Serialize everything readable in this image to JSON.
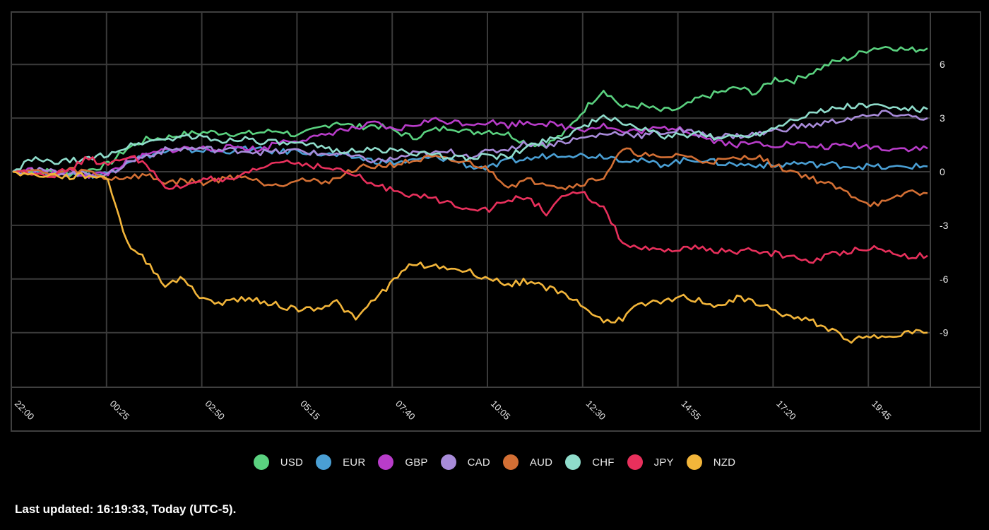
{
  "chart_data": {
    "type": "line",
    "title": "",
    "xlabel": "",
    "ylabel": "",
    "ylim": [
      -12,
      8
    ],
    "grid": true,
    "legend_position": "bottom",
    "x_tick_labels": [
      "22:00",
      "00:25",
      "02:50",
      "05:15",
      "07:40",
      "10:05",
      "12:30",
      "14:55",
      "17:20",
      "19:45"
    ],
    "y_tick_labels": [
      "6",
      "3",
      "0",
      "-3",
      "-6",
      "-9"
    ],
    "y_tick_values": [
      6,
      3,
      0,
      -3,
      -6,
      -9
    ],
    "x_minutes_from_start_step": 35,
    "series": [
      {
        "name": "USD",
        "color": "#5ad17f",
        "values": [
          0,
          0.1,
          0.0,
          -0.1,
          0.1,
          0.4,
          1.3,
          1.8,
          1.9,
          2.1,
          2.2,
          2.2,
          2.1,
          2.2,
          2.3,
          2.0,
          2.4,
          2.8,
          2.5,
          2.6,
          2.3,
          1.9,
          2.3,
          2.5,
          2.2,
          2.3,
          2.1,
          1.6,
          1.5,
          2.2,
          3.5,
          4.6,
          3.6,
          3.7,
          3.4,
          3.5,
          4.1,
          4.4,
          4.7,
          4.4,
          5.2,
          5.1,
          5.6,
          6.1,
          6.4,
          6.9,
          7.0,
          6.8,
          6.9
        ]
      },
      {
        "name": "EUR",
        "color": "#4a9fd4",
        "values": [
          0,
          0.0,
          -0.1,
          -0.1,
          -0.2,
          -0.1,
          0.6,
          0.9,
          1.1,
          1.2,
          1.2,
          1.1,
          1.3,
          1.2,
          1.1,
          1.2,
          1.0,
          0.9,
          0.8,
          0.6,
          0.5,
          0.6,
          0.8,
          0.7,
          0.3,
          0.2,
          0.6,
          0.7,
          0.9,
          1.0,
          0.9,
          0.9,
          0.7,
          0.6,
          0.4,
          0.6,
          0.7,
          0.5,
          0.4,
          0.4,
          0.3,
          0.5,
          0.4,
          0.4,
          0.3,
          0.3,
          0.2,
          0.3,
          0.3
        ]
      },
      {
        "name": "GBP",
        "color": "#b83cc9",
        "values": [
          0,
          0.1,
          -0.1,
          0.0,
          -0.2,
          -0.1,
          0.6,
          0.9,
          1.2,
          1.3,
          1.3,
          1.3,
          1.4,
          1.2,
          1.7,
          1.8,
          1.9,
          2.3,
          2.4,
          2.7,
          2.3,
          2.6,
          2.9,
          2.8,
          2.7,
          2.8,
          2.6,
          2.8,
          2.7,
          2.5,
          2.4,
          2.6,
          2.2,
          2.3,
          2.4,
          2.5,
          2.0,
          1.7,
          1.5,
          1.6,
          1.5,
          1.6,
          1.4,
          1.4,
          1.5,
          1.4,
          1.3,
          1.3,
          1.3
        ]
      },
      {
        "name": "CAD",
        "color": "#a88bd9",
        "values": [
          0,
          0.1,
          0.0,
          -0.1,
          -0.1,
          -0.2,
          0.5,
          0.9,
          1.2,
          1.3,
          1.3,
          1.2,
          1.2,
          1.1,
          1.1,
          1.2,
          1.0,
          1.0,
          0.8,
          0.6,
          0.7,
          1.0,
          1.0,
          1.1,
          0.9,
          1.1,
          1.3,
          1.6,
          1.5,
          1.7,
          1.9,
          2.1,
          2.2,
          2.0,
          2.2,
          2.3,
          2.1,
          2.0,
          2.0,
          2.1,
          2.3,
          2.5,
          2.6,
          2.8,
          3.0,
          3.1,
          3.3,
          3.1,
          3.0
        ]
      },
      {
        "name": "AUD",
        "color": "#d36f34",
        "values": [
          0,
          0.1,
          -0.2,
          0.1,
          0.0,
          -0.4,
          -0.3,
          -0.2,
          -0.6,
          -0.5,
          -0.6,
          -0.4,
          -0.2,
          -0.6,
          -0.7,
          -0.4,
          -0.6,
          -0.4,
          0.2,
          0.3,
          0.4,
          0.6,
          0.8,
          0.6,
          0.5,
          0.1,
          -0.8,
          -0.5,
          -0.6,
          -0.9,
          -0.6,
          -0.3,
          1.2,
          1.0,
          0.7,
          1.0,
          0.6,
          0.6,
          0.7,
          0.9,
          0.3,
          0.0,
          -0.4,
          -0.8,
          -1.3,
          -1.8,
          -1.7,
          -1.1,
          -1.2
        ]
      },
      {
        "name": "CHF",
        "color": "#8fdccb",
        "values": [
          0,
          0.7,
          0.5,
          0.6,
          0.7,
          1.0,
          1.4,
          1.7,
          1.8,
          2.0,
          1.9,
          1.7,
          1.9,
          1.7,
          1.6,
          1.5,
          1.4,
          1.2,
          1.2,
          1.2,
          1.2,
          1.1,
          0.9,
          0.8,
          0.8,
          0.9,
          0.8,
          1.4,
          1.8,
          2.0,
          2.6,
          3.0,
          2.8,
          2.4,
          2.0,
          2.0,
          2.1,
          1.9,
          2.0,
          2.1,
          2.5,
          3.0,
          3.3,
          3.5,
          3.7,
          3.7,
          3.6,
          3.5,
          3.5
        ]
      },
      {
        "name": "JPY",
        "color": "#e8305c",
        "values": [
          0,
          0.0,
          -0.2,
          0.1,
          0.8,
          0.3,
          0.9,
          0.5,
          -1.0,
          -0.8,
          -0.3,
          -0.6,
          -0.3,
          0.2,
          0.6,
          0.5,
          0.3,
          0.1,
          -0.2,
          -0.8,
          -1.0,
          -1.3,
          -1.5,
          -1.8,
          -2.0,
          -2.1,
          -1.6,
          -1.4,
          -2.3,
          -1.3,
          -1.3,
          -2.0,
          -4.0,
          -4.3,
          -4.5,
          -4.3,
          -4.3,
          -4.4,
          -4.5,
          -4.4,
          -4.6,
          -4.8,
          -5.0,
          -4.6,
          -4.4,
          -4.2,
          -4.5,
          -4.7,
          -4.7
        ]
      },
      {
        "name": "NZD",
        "color": "#f2b53a",
        "values": [
          0,
          -0.2,
          -0.2,
          -0.3,
          -0.2,
          -0.4,
          -4.0,
          -5.0,
          -6.3,
          -6.0,
          -7.2,
          -7.3,
          -7.1,
          -7.2,
          -7.5,
          -7.7,
          -7.6,
          -7.3,
          -8.3,
          -7.1,
          -6.1,
          -5.1,
          -5.3,
          -5.4,
          -5.6,
          -6.0,
          -6.3,
          -6.1,
          -6.5,
          -6.8,
          -7.6,
          -8.4,
          -8.2,
          -7.3,
          -7.4,
          -7.0,
          -7.2,
          -7.5,
          -7.1,
          -7.3,
          -7.8,
          -8.2,
          -8.4,
          -8.9,
          -9.4,
          -9.3,
          -9.1,
          -9.0,
          -9.0
        ]
      }
    ]
  },
  "legend": {
    "items": [
      {
        "label": "USD",
        "color": "#5ad17f"
      },
      {
        "label": "EUR",
        "color": "#4a9fd4"
      },
      {
        "label": "GBP",
        "color": "#b83cc9"
      },
      {
        "label": "CAD",
        "color": "#a88bd9"
      },
      {
        "label": "AUD",
        "color": "#d36f34"
      },
      {
        "label": "CHF",
        "color": "#8fdccb"
      },
      {
        "label": "JPY",
        "color": "#e8305c"
      },
      {
        "label": "NZD",
        "color": "#f2b53a"
      }
    ]
  },
  "footer": {
    "last_updated": "Last updated: 16:19:33, Today (UTC-5)."
  },
  "colors": {
    "background": "#000000",
    "grid": "#3a3a3a",
    "frame": "#3f3f3f",
    "text": "#e8e8e8"
  }
}
